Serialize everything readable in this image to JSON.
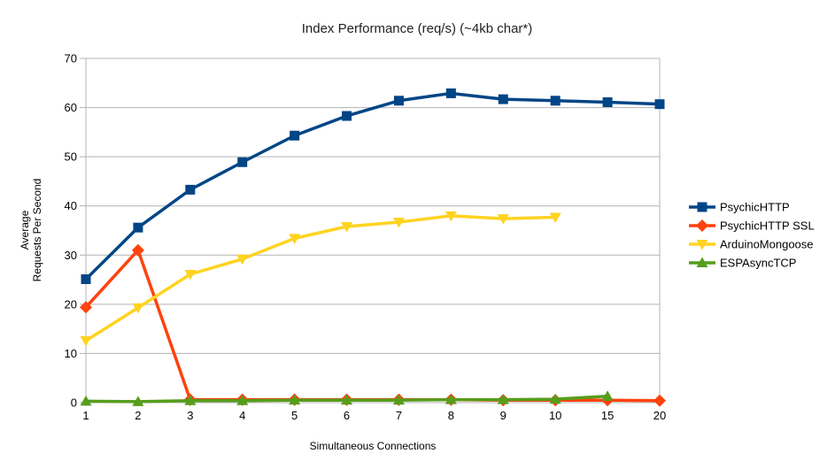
{
  "chart_data": {
    "type": "line",
    "title": "Index Performance (req/s) (~4kb char*)",
    "xlabel": "Simultaneous Connections",
    "ylabel_line1": "Average",
    "ylabel_line2": "Requests Per Second",
    "categories": [
      1,
      2,
      3,
      4,
      5,
      6,
      7,
      8,
      9,
      10,
      15,
      20
    ],
    "ylim": [
      0,
      70
    ],
    "ytick_step": 10,
    "grid": "horizontal-only",
    "legend_position": "right",
    "colors": {
      "grid": "#b3b3b3",
      "axis": "#b3b3b3",
      "tick_label": "#000000",
      "title": "#222222"
    },
    "series": [
      {
        "name": "PsychicHTTP",
        "color": "#004586",
        "marker": "square",
        "values": [
          25.1,
          35.6,
          43.3,
          48.9,
          54.3,
          58.3,
          61.4,
          62.9,
          61.7,
          61.4,
          61.1,
          60.7
        ]
      },
      {
        "name": "PsychicHTTP SSL",
        "color": "#FF420E",
        "marker": "diamond",
        "values": [
          19.4,
          31.0,
          0.6,
          0.6,
          0.6,
          0.6,
          0.6,
          0.6,
          0.5,
          0.5,
          0.5,
          0.4
        ]
      },
      {
        "name": "ArduinoMongoose",
        "color": "#FFD320",
        "marker": "triangle-down",
        "values": [
          12.6,
          19.3,
          26.1,
          29.2,
          33.4,
          35.8,
          36.7,
          38.0,
          37.4,
          37.7,
          null,
          null
        ]
      },
      {
        "name": "ESPAsyncTCP",
        "color": "#579D1C",
        "marker": "triangle-up",
        "values": [
          0.3,
          0.2,
          0.4,
          0.4,
          0.5,
          0.5,
          0.5,
          0.6,
          0.6,
          0.7,
          1.3,
          null
        ]
      }
    ]
  }
}
